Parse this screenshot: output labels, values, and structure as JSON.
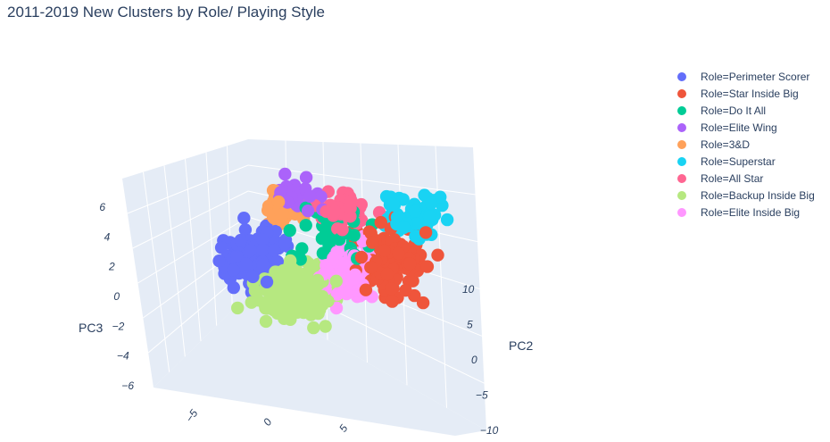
{
  "chart_data": {
    "type": "scatter",
    "title": "2011-2019 New Clusters by Role/ Playing Style",
    "axes": {
      "x": {
        "label": "",
        "ticks": [
          -5,
          0,
          5
        ]
      },
      "y": {
        "label": "PC2",
        "ticks": [
          -10,
          -5,
          0,
          5,
          10
        ]
      },
      "z": {
        "label": "PC3",
        "ticks": [
          -6,
          -4,
          -2,
          0,
          2,
          4,
          6
        ]
      }
    },
    "legend_position": "right",
    "series": [
      {
        "name": "Role=Perimeter Scorer",
        "color": "#636efa"
      },
      {
        "name": "Role=Star Inside Big",
        "color": "#ef553b"
      },
      {
        "name": "Role=Do It All",
        "color": "#00cc96"
      },
      {
        "name": "Role=Elite Wing",
        "color": "#ab63fa"
      },
      {
        "name": "Role=3&D",
        "color": "#ffa15a"
      },
      {
        "name": "Role=Superstar",
        "color": "#19d3f3"
      },
      {
        "name": "Role=All Star",
        "color": "#ff6692"
      },
      {
        "name": "Role=Backup Inside Big",
        "color": "#b6e880"
      },
      {
        "name": "Role=Elite Inside Big",
        "color": "#ff97ff"
      }
    ]
  }
}
